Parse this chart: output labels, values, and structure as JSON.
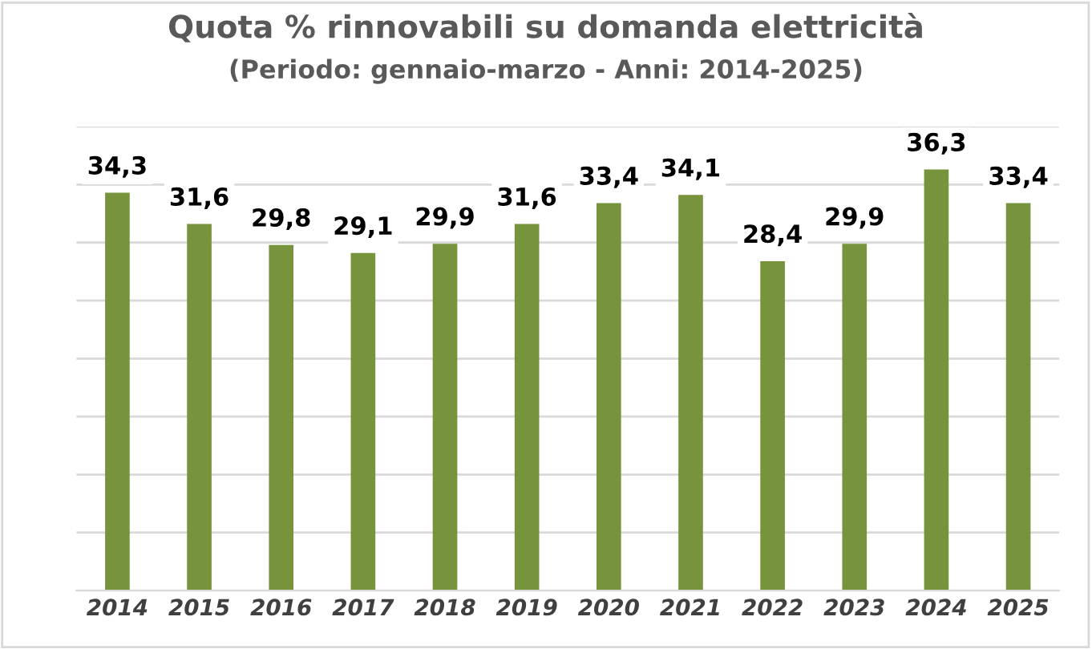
{
  "chart_data": {
    "type": "bar",
    "title": "Quota % rinnovabili su domanda elettricità",
    "subtitle": "(Periodo: gennaio-marzo - Anni: 2014-2025)",
    "categories": [
      "2014",
      "2015",
      "2016",
      "2017",
      "2018",
      "2019",
      "2020",
      "2021",
      "2022",
      "2023",
      "2024",
      "2025"
    ],
    "values": [
      34.3,
      31.6,
      29.8,
      29.1,
      29.9,
      31.6,
      33.4,
      34.1,
      28.4,
      29.9,
      36.3,
      33.4
    ],
    "value_labels": [
      "34,3",
      "31,6",
      "29,8",
      "29,1",
      "29,9",
      "31,6",
      "33,4",
      "34,1",
      "28,4",
      "29,9",
      "36,3",
      "33,4"
    ],
    "color": "#77933c",
    "ylim": [
      0,
      40
    ],
    "yticks": [
      {
        "value": 0,
        "label": null
      },
      {
        "value": 5,
        "label": null
      },
      {
        "value": 10,
        "label": null
      },
      {
        "value": 15,
        "label": null
      },
      {
        "value": 20,
        "label": null
      },
      {
        "value": 25,
        "label": null
      },
      {
        "value": 30,
        "label": null
      },
      {
        "value": 35,
        "label": null
      },
      {
        "value": 40,
        "label": null
      }
    ],
    "tick_labels": "x",
    "grid": "y"
  }
}
